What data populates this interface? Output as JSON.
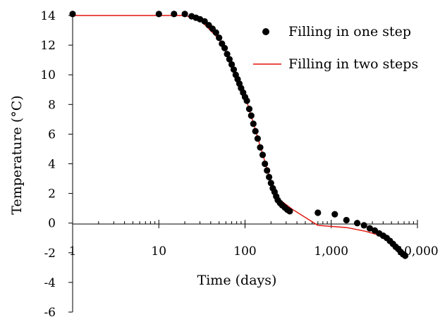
{
  "chart_data": {
    "type": "scatter",
    "xlabel": "Time (days)",
    "ylabel": "Temperature (°C)",
    "x_scale": "log",
    "xlim": [
      1,
      10000
    ],
    "ylim": [
      -6,
      14
    ],
    "y_ticks": [
      -6,
      -4,
      -2,
      0,
      2,
      4,
      6,
      8,
      10,
      12,
      14
    ],
    "x_ticks": [
      1,
      10,
      100,
      1000,
      10000
    ],
    "x_tick_labels": [
      "1",
      "10",
      "100",
      "1,000",
      "10,000"
    ],
    "y_tick_labels": [
      "-6",
      "-4",
      "-2",
      "0",
      "2",
      "4",
      "6",
      "8",
      "10",
      "12",
      "14"
    ],
    "grid": false,
    "legend": "top-right",
    "series": [
      {
        "name": "Filling in one step",
        "kind": "scatter",
        "color": "#000000",
        "points": [
          [
            1,
            14.1
          ],
          [
            10,
            14.1
          ],
          [
            15,
            14.1
          ],
          [
            20,
            14.1
          ],
          [
            24,
            13.95
          ],
          [
            27,
            13.85
          ],
          [
            30,
            13.75
          ],
          [
            34,
            13.6
          ],
          [
            38,
            13.35
          ],
          [
            42,
            13.1
          ],
          [
            46,
            12.85
          ],
          [
            50,
            12.5
          ],
          [
            54,
            12.1
          ],
          [
            58,
            11.8
          ],
          [
            62,
            11.4
          ],
          [
            66,
            11.05
          ],
          [
            70,
            10.7
          ],
          [
            74,
            10.35
          ],
          [
            78,
            10.0
          ],
          [
            82,
            9.7
          ],
          [
            86,
            9.4
          ],
          [
            90,
            9.1
          ],
          [
            95,
            8.8
          ],
          [
            100,
            8.5
          ],
          [
            105,
            8.25
          ],
          [
            112,
            7.7
          ],
          [
            118,
            7.25
          ],
          [
            125,
            6.7
          ],
          [
            132,
            6.2
          ],
          [
            140,
            5.7
          ],
          [
            150,
            5.1
          ],
          [
            160,
            4.6
          ],
          [
            170,
            4.0
          ],
          [
            180,
            3.55
          ],
          [
            190,
            3.1
          ],
          [
            200,
            2.7
          ],
          [
            210,
            2.35
          ],
          [
            220,
            2.1
          ],
          [
            230,
            1.8
          ],
          [
            240,
            1.55
          ],
          [
            255,
            1.35
          ],
          [
            270,
            1.2
          ],
          [
            290,
            1.05
          ],
          [
            310,
            0.9
          ],
          [
            330,
            0.8
          ],
          [
            700,
            0.7
          ],
          [
            1100,
            0.6
          ],
          [
            1500,
            0.2
          ],
          [
            2000,
            0.0
          ],
          [
            2400,
            -0.15
          ],
          [
            2800,
            -0.35
          ],
          [
            3200,
            -0.5
          ],
          [
            3600,
            -0.7
          ],
          [
            4000,
            -0.85
          ],
          [
            4400,
            -1.0
          ],
          [
            4800,
            -1.2
          ],
          [
            5200,
            -1.4
          ],
          [
            5600,
            -1.6
          ],
          [
            6000,
            -1.75
          ],
          [
            6400,
            -1.95
          ],
          [
            6800,
            -2.1
          ],
          [
            7200,
            -2.2
          ]
        ]
      },
      {
        "name": "Filling in two steps",
        "kind": "line",
        "color": "#e3120b",
        "points": [
          [
            1,
            14.0
          ],
          [
            20,
            14.0
          ],
          [
            30,
            13.7
          ],
          [
            50,
            12.4
          ],
          [
            70,
            10.8
          ],
          [
            100,
            8.6
          ],
          [
            150,
            5.2
          ],
          [
            200,
            2.8
          ],
          [
            250,
            1.6
          ],
          [
            350,
            0.95
          ],
          [
            700,
            -0.15
          ],
          [
            1500,
            -0.3
          ],
          [
            2500,
            -0.55
          ],
          [
            4000,
            -0.9
          ],
          [
            7000,
            -2.0
          ]
        ]
      }
    ]
  }
}
